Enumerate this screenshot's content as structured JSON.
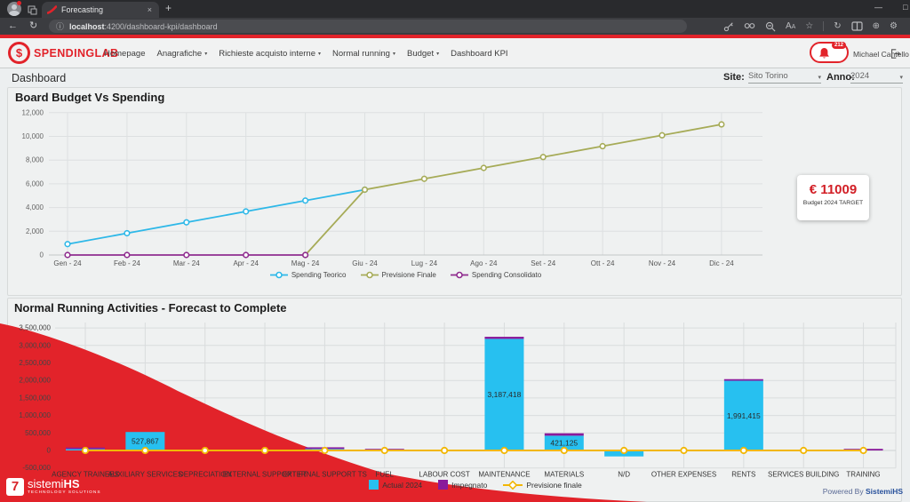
{
  "browser": {
    "tab_title": "Forecasting",
    "url_host": "localhost",
    "url_rest": ":4200/dashboard-kpi/dashboard"
  },
  "icons": {
    "back": "←",
    "reload": "↻",
    "info": "ⓘ",
    "new_tab": "+",
    "close_tab": "×",
    "caret": "▾",
    "star": "☆",
    "gear": "⚙",
    "extensions": "⊕",
    "collections": "↻",
    "minimize": "—",
    "maximize": "□",
    "font_size": "A",
    "logo_symbol": "$"
  },
  "app_header": {
    "brand": "SPENDINGLAB",
    "nav": [
      {
        "label": "Homepage",
        "caret": false
      },
      {
        "label": "Anagrafiche",
        "caret": true
      },
      {
        "label": "Richieste acquisto interne",
        "caret": true
      },
      {
        "label": "Normal running",
        "caret": true
      },
      {
        "label": "Budget",
        "caret": true
      },
      {
        "label": "Dashboard KPI",
        "caret": false
      }
    ],
    "notification_count": "212",
    "user_name": "Michael Cantello"
  },
  "page": {
    "title": "Dashboard",
    "site_label": "Site:",
    "site_value": "Sito Torino",
    "anno_label": "Anno:",
    "anno_value": "2024"
  },
  "target_card": {
    "value": "€ 11009",
    "caption": "Budget 2024 TARGET"
  },
  "footer": {
    "logo_symbol": "7",
    "logo_text_1": "sistemi",
    "logo_text_2": "HS",
    "logo_sub": "TECHNOLOGY SOLUTIONS",
    "powered_prefix": "Powered By ",
    "powered_brand": "SistemiHS"
  },
  "colors": {
    "brand_red": "#e2232a",
    "powered_blue": "#27509b"
  },
  "chart_data": [
    {
      "type": "line",
      "title": "Board Budget Vs Spending",
      "categories": [
        "Gen - 24",
        "Feb - 24",
        "Mar - 24",
        "Apr - 24",
        "Mag - 24",
        "Giu - 24",
        "Lug - 24",
        "Ago - 24",
        "Set - 24",
        "Ott - 24",
        "Nov - 24",
        "Dic - 24"
      ],
      "series": [
        {
          "name": "Spending Teorico",
          "color": "#2eb8e8",
          "values": [
            917,
            1835,
            2752,
            3670,
            4587,
            5505,
            null,
            null,
            null,
            null,
            null,
            null
          ]
        },
        {
          "name": "Previsione Finale",
          "color": "#a6ab57",
          "values": [
            null,
            null,
            null,
            null,
            0,
            5505,
            6422,
            7340,
            8257,
            9174,
            10092,
            11009
          ]
        },
        {
          "name": "Spending Consolidato",
          "color": "#8f2d8f",
          "values": [
            0,
            0,
            0,
            0,
            0,
            null,
            null,
            null,
            null,
            null,
            null,
            null
          ]
        }
      ],
      "ylim": [
        0,
        12000
      ],
      "yticks": {
        "values": [
          0,
          2000,
          4000,
          6000,
          8000,
          10000,
          12000
        ],
        "labels": [
          "0",
          "2,000",
          "4,000",
          "6,000",
          "8,000",
          "10,000",
          "12,000"
        ]
      },
      "grid": true,
      "legend_position": "bottom"
    },
    {
      "type": "bar",
      "title": "Normal Running Activities - Forecast to Complete",
      "categories": [
        "AGENCY TRAINEES",
        "AUXILIARY SERVICES",
        "DEPRECIATION",
        "EXTERNAL SUPPORT FT",
        "EXTERNAL SUPPORT TS",
        "FUEL",
        "LABOUR COST",
        "MAINTENANCE",
        "MATERIALS",
        "N/D",
        "OTHER EXPENSES",
        "RENTS",
        "SERVICES BUILDING",
        "TRAINING"
      ],
      "series": [
        {
          "name": "Actual 2024",
          "kind": "bar",
          "color": "#27c0f0",
          "values": [
            20000,
            527867,
            0,
            0,
            45000,
            0,
            0,
            3187418,
            421125,
            -170000,
            0,
            1991415,
            0,
            0
          ]
        },
        {
          "name": "Impegnato",
          "kind": "bar",
          "color": "#8a1a9b",
          "values": [
            15000,
            0,
            0,
            0,
            25000,
            15000,
            0,
            60000,
            70000,
            0,
            0,
            30000,
            0,
            25000
          ]
        },
        {
          "name": "Previsione finale",
          "kind": "line",
          "color": "#f2b705",
          "values": [
            0,
            0,
            0,
            0,
            0,
            0,
            0,
            0,
            0,
            0,
            0,
            0,
            0,
            0
          ]
        }
      ],
      "bar_labels": [
        "",
        "527,867",
        "",
        "",
        "",
        "",
        "",
        "3,187,418",
        "421,125",
        "",
        "",
        "1,991,415",
        "",
        ""
      ],
      "ylim": [
        -500000,
        3500000
      ],
      "yticks": {
        "values": [
          -500000,
          0,
          500000,
          1000000,
          1500000,
          2000000,
          2500000,
          3000000,
          3500000
        ],
        "labels": [
          "-500,000",
          "0",
          "500,000",
          "1,000,000",
          "1,500,000",
          "2,000,000",
          "2,500,000",
          "3,000,000",
          "3,500,000"
        ]
      },
      "grid": true,
      "legend_position": "bottom"
    }
  ]
}
